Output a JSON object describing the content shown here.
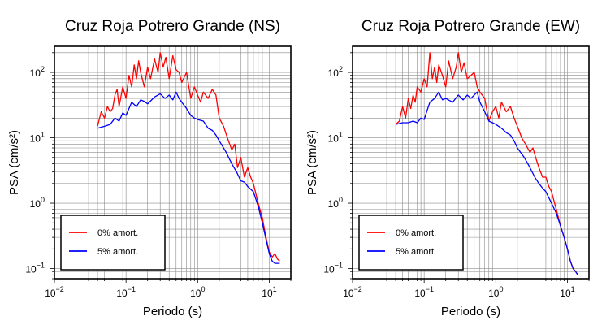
{
  "chart_data": [
    {
      "type": "line",
      "title": "Cruz Roja Potrero Grande (NS)",
      "xlabel": "Periodo (s)",
      "ylabel": "PSA (cm/s²)",
      "x_scale": "log",
      "y_scale": "log",
      "xlim": [
        0.01,
        20
      ],
      "ylim": [
        0.07,
        250
      ],
      "grid": true,
      "legend_position": "bottom-left",
      "x_ticks": [
        {
          "value": 0.01,
          "base": "10",
          "exp": "−2"
        },
        {
          "value": 0.1,
          "base": "10",
          "exp": "−1"
        },
        {
          "value": 1,
          "base": "10",
          "exp": "0"
        },
        {
          "value": 10,
          "base": "10",
          "exp": "1"
        }
      ],
      "y_ticks": [
        {
          "value": 0.1,
          "base": "10",
          "exp": "−1"
        },
        {
          "value": 1,
          "base": "10",
          "exp": "0"
        },
        {
          "value": 10,
          "base": "10",
          "exp": "1"
        },
        {
          "value": 100,
          "base": "10",
          "exp": "2"
        }
      ],
      "series": [
        {
          "name": "0% amort.",
          "color": "#ff0000",
          "x": [
            0.04,
            0.045,
            0.05,
            0.055,
            0.06,
            0.065,
            0.07,
            0.075,
            0.08,
            0.09,
            0.1,
            0.11,
            0.12,
            0.13,
            0.14,
            0.15,
            0.16,
            0.18,
            0.2,
            0.22,
            0.25,
            0.28,
            0.3,
            0.33,
            0.36,
            0.4,
            0.45,
            0.5,
            0.55,
            0.6,
            0.7,
            0.8,
            0.9,
            1.0,
            1.1,
            1.2,
            1.4,
            1.6,
            1.8,
            2.0,
            2.3,
            2.6,
            3.0,
            3.3,
            3.6,
            4.0,
            4.5,
            5.0,
            5.5,
            6.0,
            7.0,
            8.0,
            9.0,
            10.0,
            11.0,
            12.0,
            13.0,
            14.0
          ],
          "y": [
            15,
            25,
            20,
            30,
            25,
            28,
            45,
            55,
            30,
            60,
            40,
            90,
            60,
            130,
            80,
            150,
            100,
            60,
            120,
            80,
            160,
            100,
            200,
            120,
            170,
            80,
            180,
            110,
            100,
            70,
            100,
            40,
            60,
            45,
            35,
            50,
            40,
            55,
            45,
            20,
            15,
            10,
            6.5,
            8,
            3.5,
            5,
            2.5,
            3.5,
            2.5,
            2.0,
            1.0,
            0.6,
            0.3,
            0.18,
            0.15,
            0.17,
            0.14,
            0.13
          ]
        },
        {
          "name": "5% amort.",
          "color": "#0000ff",
          "x": [
            0.04,
            0.05,
            0.06,
            0.07,
            0.08,
            0.09,
            0.1,
            0.12,
            0.14,
            0.16,
            0.18,
            0.2,
            0.25,
            0.3,
            0.35,
            0.4,
            0.45,
            0.5,
            0.55,
            0.6,
            0.7,
            0.8,
            0.9,
            1.0,
            1.2,
            1.4,
            1.6,
            1.8,
            2.0,
            2.5,
            3.0,
            3.5,
            4.0,
            4.5,
            5.0,
            6.0,
            7.0,
            8.0,
            9.0,
            10.0,
            11.0,
            12.0,
            13.0,
            14.0
          ],
          "y": [
            14,
            15,
            16,
            20,
            18,
            24,
            22,
            35,
            30,
            38,
            36,
            33,
            42,
            47,
            40,
            45,
            38,
            50,
            40,
            35,
            28,
            22,
            20,
            19,
            18,
            14,
            13,
            11,
            9,
            6,
            4,
            3,
            2.2,
            2.1,
            1.8,
            1.5,
            0.9,
            0.5,
            0.28,
            0.17,
            0.13,
            0.12,
            0.12,
            0.12
          ]
        }
      ]
    },
    {
      "type": "line",
      "title": "Cruz Roja Potrero Grande (EW)",
      "xlabel": "Periodo (s)",
      "ylabel": "PSA (cm/s²)",
      "x_scale": "log",
      "y_scale": "log",
      "xlim": [
        0.01,
        20
      ],
      "ylim": [
        0.07,
        250
      ],
      "grid": true,
      "legend_position": "bottom-left",
      "x_ticks": [
        {
          "value": 0.01,
          "base": "10",
          "exp": "−2"
        },
        {
          "value": 0.1,
          "base": "10",
          "exp": "−1"
        },
        {
          "value": 1,
          "base": "10",
          "exp": "0"
        },
        {
          "value": 10,
          "base": "10",
          "exp": "1"
        }
      ],
      "y_ticks": [
        {
          "value": 0.1,
          "base": "10",
          "exp": "−1"
        },
        {
          "value": 1,
          "base": "10",
          "exp": "0"
        },
        {
          "value": 10,
          "base": "10",
          "exp": "1"
        },
        {
          "value": 100,
          "base": "10",
          "exp": "2"
        }
      ],
      "series": [
        {
          "name": "0% amort.",
          "color": "#ff0000",
          "x": [
            0.04,
            0.045,
            0.05,
            0.055,
            0.06,
            0.065,
            0.07,
            0.075,
            0.08,
            0.09,
            0.1,
            0.11,
            0.12,
            0.13,
            0.14,
            0.15,
            0.16,
            0.18,
            0.2,
            0.22,
            0.25,
            0.28,
            0.3,
            0.33,
            0.36,
            0.4,
            0.45,
            0.5,
            0.55,
            0.6,
            0.7,
            0.8,
            0.9,
            1.0,
            1.1,
            1.2,
            1.4,
            1.6,
            1.8,
            2.0,
            2.3,
            2.6,
            3.0,
            3.3,
            3.6,
            4.0,
            4.5,
            5.0,
            5.5,
            6.0,
            7.0,
            8.0,
            9.0,
            10.0,
            11.0,
            12.0,
            13.0,
            14.0
          ],
          "y": [
            16,
            18,
            30,
            20,
            40,
            28,
            45,
            35,
            60,
            50,
            80,
            60,
            200,
            80,
            120,
            70,
            130,
            90,
            60,
            150,
            80,
            120,
            200,
            100,
            140,
            80,
            90,
            100,
            60,
            50,
            40,
            18,
            25,
            30,
            20,
            35,
            25,
            30,
            20,
            15,
            10,
            8,
            6,
            7,
            5,
            3.5,
            2.5,
            2.5,
            1.8,
            1.5,
            0.8,
            0.45,
            0.3,
            0.2,
            0.13,
            0.1,
            0.09,
            0.08
          ]
        },
        {
          "name": "5% amort.",
          "color": "#0000ff",
          "x": [
            0.04,
            0.05,
            0.06,
            0.07,
            0.08,
            0.09,
            0.1,
            0.12,
            0.14,
            0.16,
            0.18,
            0.2,
            0.25,
            0.3,
            0.35,
            0.4,
            0.45,
            0.5,
            0.55,
            0.6,
            0.7,
            0.8,
            0.9,
            1.0,
            1.2,
            1.4,
            1.6,
            1.8,
            2.0,
            2.5,
            3.0,
            3.5,
            4.0,
            4.5,
            5.0,
            6.0,
            7.0,
            8.0,
            9.0,
            10.0,
            11.0,
            12.0,
            13.0,
            14.0
          ],
          "y": [
            16,
            17,
            17,
            18,
            17,
            20,
            19,
            35,
            40,
            50,
            38,
            40,
            35,
            45,
            38,
            45,
            40,
            45,
            50,
            35,
            25,
            18,
            17,
            16,
            14,
            12,
            11,
            9,
            7,
            5,
            3.5,
            2.5,
            2.0,
            1.7,
            1.5,
            1.0,
            0.7,
            0.45,
            0.3,
            0.2,
            0.13,
            0.1,
            0.09,
            0.08
          ]
        }
      ]
    }
  ]
}
